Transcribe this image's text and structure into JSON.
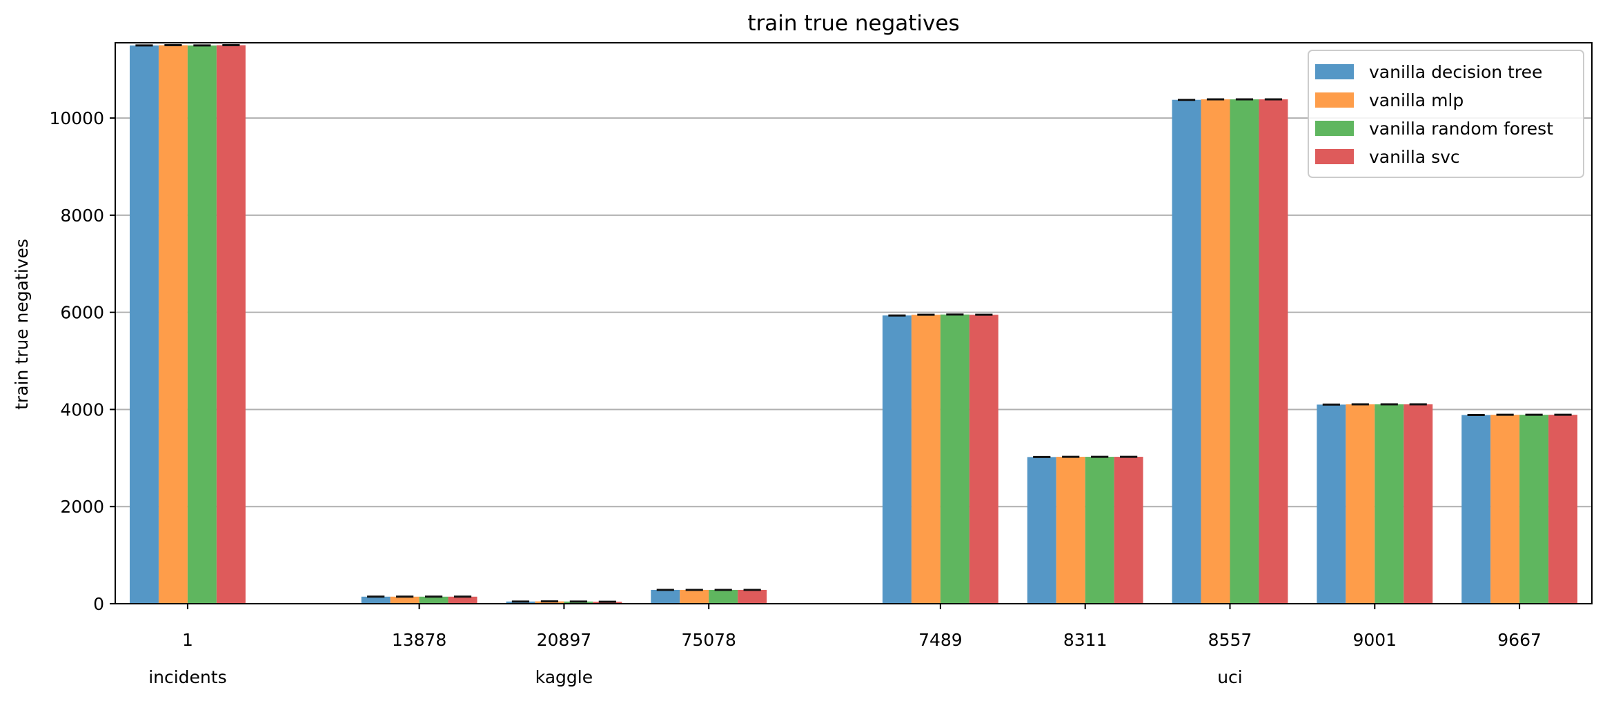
{
  "chart_data": {
    "type": "bar",
    "title": "train true negatives",
    "xlabel": "",
    "ylabel": "train true negatives",
    "ylim": [
      0,
      11550
    ],
    "yticks": [
      0,
      2000,
      4000,
      6000,
      8000,
      10000
    ],
    "grid": "y",
    "legend_position": "top-right",
    "categories": [
      "1",
      "13878",
      "20897",
      "75078",
      "7489",
      "8311",
      "8557",
      "9001",
      "9667"
    ],
    "groups": [
      {
        "label": "incidents",
        "categories": [
          "1"
        ]
      },
      {
        "label": "kaggle",
        "categories": [
          "13878",
          "20897",
          "75078"
        ]
      },
      {
        "label": "uci",
        "categories": [
          "7489",
          "8311",
          "8557",
          "9001",
          "9667"
        ]
      }
    ],
    "series": [
      {
        "name": "vanilla decision tree",
        "color": "#5597c6",
        "values": [
          11495,
          145,
          45,
          285,
          5935,
          3020,
          10375,
          4100,
          3885
        ]
      },
      {
        "name": "vanilla mlp",
        "color": "#fe9d4a",
        "values": [
          11500,
          145,
          48,
          285,
          5950,
          3025,
          10385,
          4105,
          3890
        ]
      },
      {
        "name": "vanilla random forest",
        "color": "#5fb65f",
        "values": [
          11495,
          145,
          45,
          285,
          5955,
          3025,
          10385,
          4105,
          3890
        ]
      },
      {
        "name": "vanilla svc",
        "color": "#de5b5b",
        "values": [
          11500,
          145,
          40,
          285,
          5950,
          3025,
          10385,
          4105,
          3890
        ]
      }
    ]
  }
}
